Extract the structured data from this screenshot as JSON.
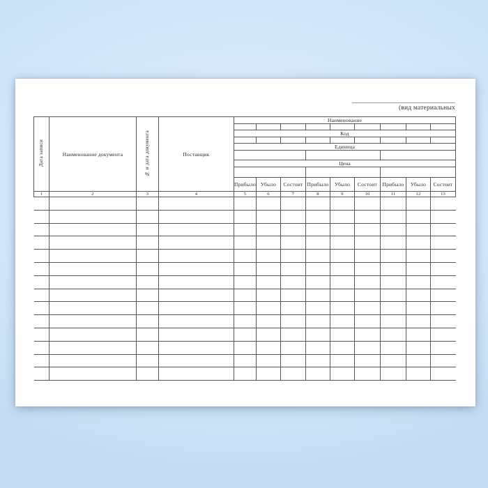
{
  "page": {
    "background_top": "#deeefd",
    "background_edge": "#c5ddf4",
    "paper_color": "#fefefe",
    "grid_line_color": "#555555",
    "caption_line_color": "#9a9a9a",
    "text_color": "#2b2b2b"
  },
  "caption": {
    "label": "(вид материальных"
  },
  "table": {
    "left_columns": [
      {
        "num": "1",
        "label": "Дата записи"
      },
      {
        "num": "2",
        "label": "Наименование документа"
      },
      {
        "num": "3",
        "label": "№ и дата документа"
      },
      {
        "num": "4",
        "label": "Поставщик"
      }
    ],
    "sections": {
      "name": "Наименование",
      "code": "Код",
      "unit": "Единица",
      "price": "Цена"
    },
    "group_labels": {
      "in": "Прибыло",
      "out": "Убыло",
      "balance": "Состоит"
    },
    "column_numbers": [
      "1",
      "2",
      "3",
      "4",
      "5",
      "6",
      "7",
      "8",
      "9",
      "10",
      "11",
      "12",
      "13"
    ],
    "body_row_count": 14,
    "body_column_count": 13
  }
}
